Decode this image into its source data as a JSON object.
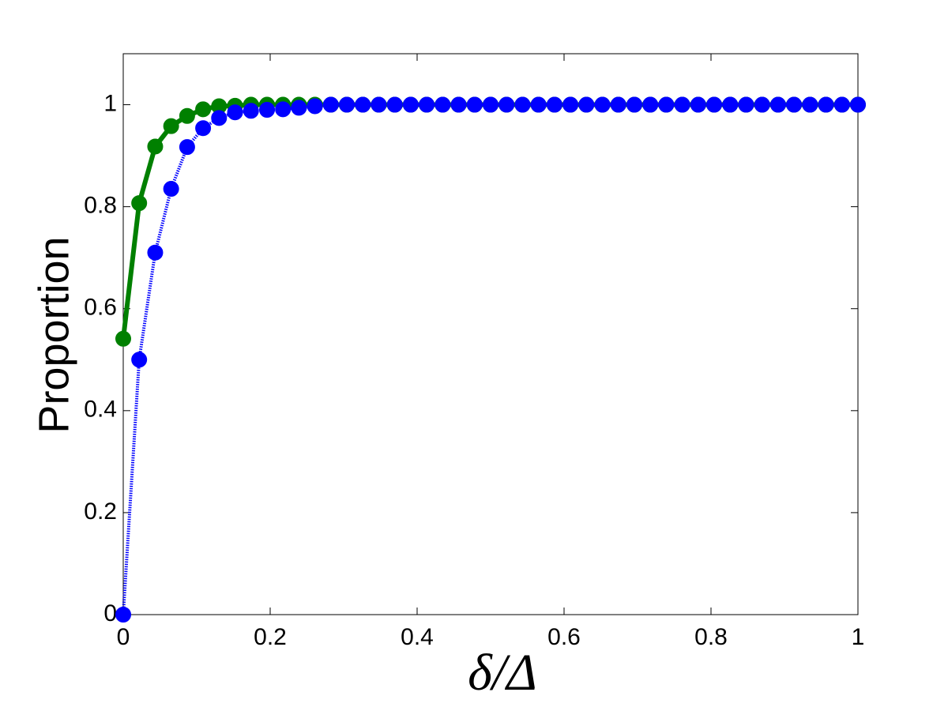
{
  "chart_data": {
    "type": "line",
    "y_label": "Proportion",
    "x_label": "δ/Δ",
    "x": [
      0,
      0.0217,
      0.0435,
      0.0652,
      0.087,
      0.1087,
      0.1304,
      0.1522,
      0.1739,
      0.1957,
      0.2174,
      0.2391,
      0.2609,
      0.2826,
      0.3043,
      0.3261,
      0.3478,
      0.3696,
      0.3913,
      0.413,
      0.4348,
      0.4565,
      0.4783,
      0.5,
      0.5217,
      0.5435,
      0.5652,
      0.587,
      0.6087,
      0.6304,
      0.6522,
      0.6739,
      0.6957,
      0.7174,
      0.7391,
      0.7609,
      0.7826,
      0.8043,
      0.8261,
      0.8478,
      0.8696,
      0.8913,
      0.913,
      0.9348,
      0.9565,
      0.9783,
      1
    ],
    "series": [
      {
        "color": "#008000",
        "line_style": "solid",
        "values": [
          0.541,
          0.807,
          0.918,
          0.958,
          0.978,
          0.991,
          0.997,
          0.998,
          1,
          1,
          1,
          1,
          1,
          1,
          1,
          1,
          1,
          1,
          1,
          1,
          1,
          1,
          1,
          1,
          1,
          1,
          1,
          1,
          1,
          1,
          1,
          1,
          1,
          1,
          1,
          1,
          1,
          1,
          1,
          1,
          1,
          1,
          1,
          1,
          1,
          1,
          1
        ]
      },
      {
        "color": "#0000ff",
        "line_style": "dotted",
        "values": [
          0,
          0.5,
          0.71,
          0.835,
          0.917,
          0.954,
          0.974,
          0.985,
          0.988,
          0.99,
          0.991,
          0.994,
          0.997,
          1,
          1,
          1,
          1,
          1,
          1,
          1,
          1,
          1,
          1,
          1,
          1,
          1,
          1,
          1,
          1,
          1,
          1,
          1,
          1,
          1,
          1,
          1,
          1,
          1,
          1,
          1,
          1,
          1,
          1,
          1,
          1,
          1,
          1
        ]
      }
    ],
    "xlim": [
      0,
      1
    ],
    "xticks": [
      0,
      0.2,
      0.4,
      0.6,
      0.8,
      1
    ],
    "ylim": [
      0,
      1.1
    ],
    "yticks": [
      0,
      0.2,
      0.4,
      0.6,
      0.8,
      1
    ],
    "grid": false
  }
}
